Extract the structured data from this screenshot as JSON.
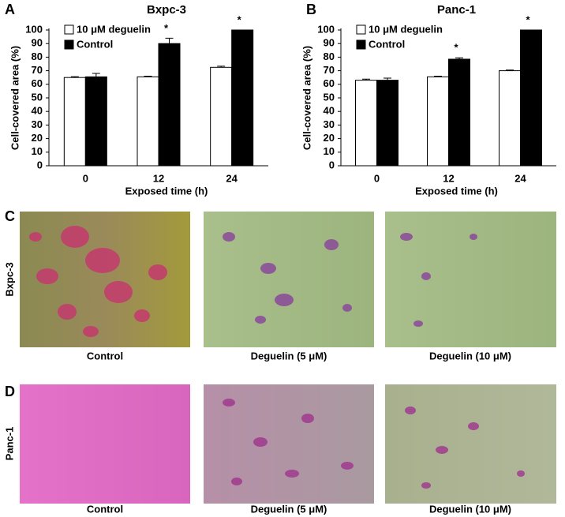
{
  "chart_data": [
    {
      "type": "bar",
      "title": "Bxpc-3",
      "x_label": "Exposed time (h)",
      "y_label": "Cell-covered area (%)",
      "categories": [
        "0",
        "12",
        "24"
      ],
      "series": [
        {
          "name": "10 μM deguelin",
          "color": "#ffffff",
          "values": [
            65,
            65.5,
            72.5
          ],
          "errors": [
            0.6,
            0.5,
            0.8
          ]
        },
        {
          "name": "Control",
          "color": "#000000",
          "values": [
            65.5,
            90,
            100
          ],
          "errors": [
            2.5,
            4,
            0
          ]
        }
      ],
      "significance": [
        null,
        "*",
        "*"
      ],
      "ylim": [
        0,
        100
      ],
      "yticks": [
        0,
        10,
        20,
        30,
        40,
        50,
        60,
        70,
        80,
        90,
        100
      ],
      "grid": false,
      "legend": "top-left"
    },
    {
      "type": "bar",
      "title": "Panc-1",
      "x_label": "Exposed time (h)",
      "y_label": "Cell-covered area (%)",
      "categories": [
        "0",
        "12",
        "24"
      ],
      "series": [
        {
          "name": "10 μM deguelin",
          "color": "#ffffff",
          "values": [
            63,
            65.5,
            70
          ],
          "errors": [
            0.8,
            0.5,
            0.5
          ]
        },
        {
          "name": "Control",
          "color": "#000000",
          "values": [
            63,
            78.5,
            100
          ],
          "errors": [
            1.5,
            1,
            0
          ]
        }
      ],
      "significance": [
        null,
        "*",
        "*"
      ],
      "ylim": [
        0,
        100
      ],
      "yticks": [
        0,
        10,
        20,
        30,
        40,
        50,
        60,
        70,
        80,
        90,
        100
      ],
      "grid": false,
      "legend": "top-left"
    }
  ],
  "panel_labels": [
    "A",
    "B",
    "C",
    "D"
  ],
  "image_rows": [
    {
      "label": "Bxpc-3",
      "captions": [
        "Control",
        "Deguelin (5 μM)",
        "Deguelin (10 μM)"
      ]
    },
    {
      "label": "Panc-1",
      "captions": [
        "Control",
        "Deguelin (5 μM)",
        "Deguelin (10 μM)"
      ]
    }
  ]
}
